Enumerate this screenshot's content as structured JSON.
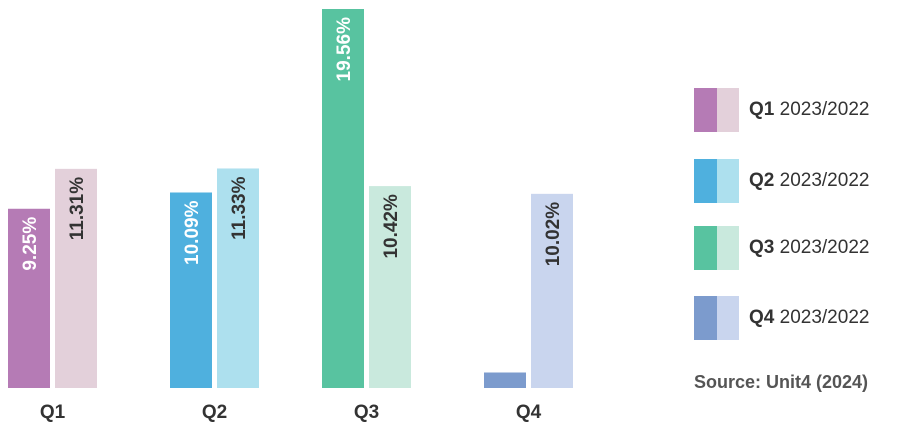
{
  "colors": {
    "q1": {
      "main": "#b57bb5",
      "light": "#e3d0da"
    },
    "q2": {
      "main": "#4fb0de",
      "light": "#ade0ee"
    },
    "q3": {
      "main": "#58c3a0",
      "light": "#c9e9dd"
    },
    "q4": {
      "main": "#7c9bcd",
      "light": "#c9d5ee"
    },
    "label_dark": "#333333",
    "label_light": "#ffffff"
  },
  "chart_data": {
    "type": "bar",
    "categories": [
      "Q1",
      "Q2",
      "Q3",
      "Q4"
    ],
    "series": [
      {
        "values": [
          9.25,
          10.09,
          19.56,
          0.8
        ],
        "labels": [
          "9.25%",
          "10.09%",
          "19.56%",
          ""
        ]
      },
      {
        "values": [
          11.31,
          11.33,
          10.42,
          10.02
        ],
        "labels": [
          "11.31%",
          "11.33%",
          "10.42%",
          "10.02%"
        ]
      }
    ],
    "ylim": [
      0,
      19.56
    ],
    "grid": false,
    "legend_position": "right"
  },
  "legend": {
    "items": [
      {
        "bold": "Q1",
        "text": " 2023/2022"
      },
      {
        "bold": "Q2",
        "text": " 2023/2022"
      },
      {
        "bold": "Q3",
        "text": " 2023/2022"
      },
      {
        "bold": "Q4",
        "text": " 2023/2022"
      }
    ]
  },
  "source": "Source: Unit4 (2024)"
}
